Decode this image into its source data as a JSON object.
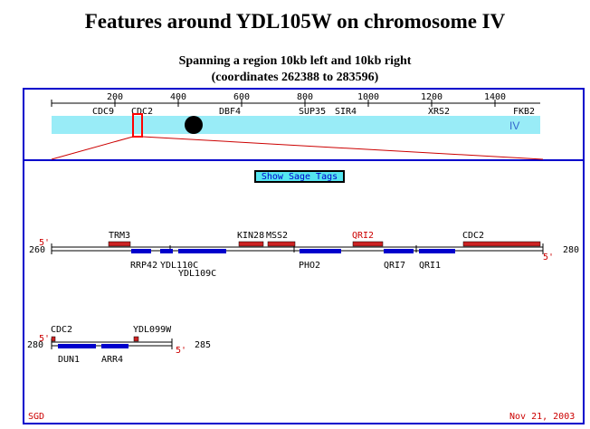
{
  "page": {
    "title": "Features around YDL105W on chromosome IV",
    "subtitle_line1": "Spanning a region 10kb left and 10kb right",
    "subtitle_line2": "(coordinates 262388 to 283596)"
  },
  "overview": {
    "chromosome_label": "IV",
    "ticks": [
      "200",
      "400",
      "600",
      "800",
      "1000",
      "1200",
      "1400"
    ],
    "genes": [
      "CDC9",
      "CDC2",
      "DBF4",
      "SUP35",
      "SIR4",
      "XRS2",
      "FKB2"
    ]
  },
  "show_sage_button": "Show Sage Tags",
  "track1": {
    "left_coord": "260",
    "right_coord": "280",
    "five_prime_top": "5'",
    "five_prime_bottom": "5'",
    "top_labels": [
      "TRM3",
      "KIN28",
      "MSS2",
      "QRI2",
      "CDC2"
    ],
    "bottom_labels": [
      "RRP42",
      "YDL110C",
      "YDL109C",
      "PHO2",
      "QRI7",
      "QRI1"
    ]
  },
  "track2": {
    "left_coord": "280",
    "right_coord": "285",
    "five_prime_top": "5'",
    "five_prime_bottom": "5'",
    "top_labels": [
      "CDC2",
      "YDL099W"
    ],
    "bottom_labels": [
      "DUN1",
      "ARR4"
    ]
  },
  "footer": {
    "left": "SGD",
    "right": "Nov 21, 2003"
  },
  "colors": {
    "frame": "#0000cc",
    "chromosome": "#99ecf7",
    "red_feature": "#cc2222",
    "blue_feature": "#0000cc",
    "highlight_label": "#cc0000"
  }
}
